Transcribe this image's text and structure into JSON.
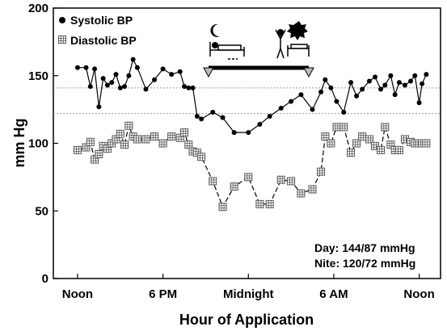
{
  "chart_data": {
    "type": "line",
    "xlabel": "Hour of Application",
    "ylabel": "mm Hg",
    "ylim": [
      0,
      200
    ],
    "xlim": [
      10.3,
      37.5
    ],
    "yticks": [
      0,
      50,
      100,
      150,
      200
    ],
    "xticks": [
      {
        "value": 12,
        "label": "Noon"
      },
      {
        "value": 18,
        "label": "6 PM"
      },
      {
        "value": 24,
        "label": "Midnight"
      },
      {
        "value": 30,
        "label": "6 AM"
      },
      {
        "value": 36,
        "label": "Noon"
      }
    ],
    "series": [
      {
        "name": "Systolic BP",
        "marker": "filled-circle",
        "line": "solid",
        "color": "#000000",
        "x": [
          12.0,
          12.6,
          12.9,
          13.2,
          13.5,
          13.8,
          14.1,
          14.4,
          14.7,
          15.0,
          15.3,
          15.6,
          15.9,
          16.2,
          16.8,
          17.4,
          18.0,
          18.6,
          19.2,
          19.5,
          19.8,
          20.1,
          20.4,
          20.7,
          21.5,
          22.2,
          23.0,
          24.0,
          24.8,
          25.5,
          26.3,
          27.0,
          27.7,
          28.5,
          29.1,
          29.4,
          29.8,
          30.2,
          30.7,
          31.2,
          31.6,
          32.0,
          32.5,
          32.9,
          33.3,
          33.6,
          34.0,
          34.3,
          34.6,
          35.0,
          35.4,
          35.7,
          36.0,
          36.2,
          36.5
        ],
        "values": [
          156,
          156,
          142,
          155,
          127,
          148,
          143,
          145,
          151,
          141,
          142,
          150,
          162,
          156,
          140,
          147,
          155,
          151,
          153,
          142,
          141,
          141,
          120,
          118,
          123,
          119,
          108,
          108,
          114,
          120,
          126,
          131,
          136,
          125,
          138,
          147,
          141,
          131,
          123,
          145,
          135,
          140,
          146,
          149,
          140,
          143,
          150,
          136,
          145,
          143,
          146,
          150,
          130,
          144,
          151
        ]
      },
      {
        "name": "Diastolic BP",
        "marker": "grid-square",
        "line": "dashed",
        "color": "#000000",
        "x": [
          12.0,
          12.6,
          12.9,
          13.2,
          13.5,
          13.8,
          14.1,
          14.4,
          14.7,
          15.0,
          15.3,
          15.6,
          15.9,
          16.2,
          16.8,
          17.4,
          18.0,
          18.6,
          19.2,
          19.5,
          19.8,
          20.1,
          20.4,
          20.7,
          21.5,
          22.2,
          23.0,
          24.0,
          24.8,
          25.5,
          26.3,
          27.0,
          27.7,
          28.5,
          29.1,
          29.4,
          29.8,
          30.2,
          30.7,
          31.2,
          31.6,
          32.0,
          32.5,
          32.9,
          33.3,
          33.6,
          34.0,
          34.3,
          34.6,
          35.0,
          35.4,
          35.7,
          36.0,
          36.2,
          36.5
        ],
        "values": [
          95,
          97,
          101,
          88,
          92,
          98,
          96,
          100,
          103,
          107,
          99,
          113,
          105,
          103,
          103,
          105,
          100,
          105,
          104,
          108,
          99,
          94,
          93,
          90,
          72,
          53,
          68,
          75,
          55,
          55,
          73,
          72,
          63,
          66,
          79,
          105,
          100,
          112,
          112,
          93,
          100,
          105,
          103,
          98,
          95,
          112,
          99,
          95,
          95,
          103,
          101,
          100,
          100,
          100,
          100
        ]
      }
    ],
    "reference_lines": [
      {
        "y": 141,
        "style": "dotted"
      },
      {
        "y": 122,
        "style": "dotted"
      }
    ],
    "legend_placement": "top-left",
    "annotations": {
      "period_arrow": {
        "x_start": 21.1,
        "x_end": 30.4,
        "y": 151
      },
      "moon_icon": "crescent-moon-icon",
      "sleep_icon": "sleeping-person-icon",
      "sun_icon": "sun-icon",
      "wake_icon": "waking-person-icon",
      "summary_day": "Day: 144/87 mmHg",
      "summary_nite": "Nite: 120/72 mmHg"
    },
    "grid": false
  }
}
